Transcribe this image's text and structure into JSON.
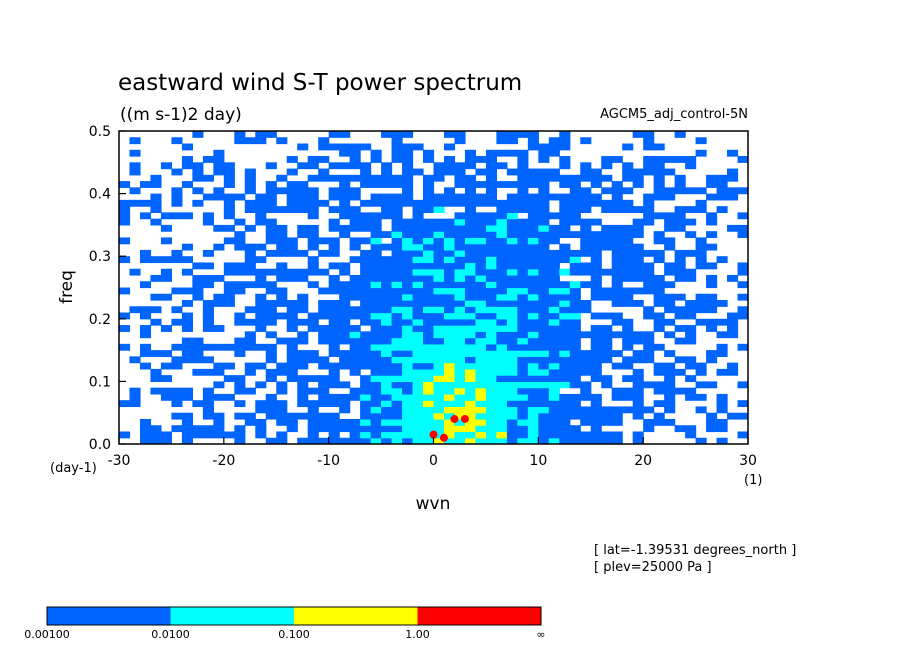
{
  "chart_data": {
    "type": "heatmap",
    "title": "eastward wind S-T power spectrum",
    "units": "((m s-1)2 day)",
    "subtitle_right": "AGCM5_adj_control-5N",
    "xlabel": "wvn",
    "ylabel": "freq",
    "x_units": "(1)",
    "y_units": "(day-1)",
    "xlim": [
      -30,
      30
    ],
    "ylim": [
      0,
      0.5
    ],
    "xticks": [
      -30,
      -20,
      -10,
      0,
      10,
      20,
      30
    ],
    "xtick_labels": [
      "-30",
      "-20",
      "-10",
      "0",
      "10",
      "20",
      "30"
    ],
    "yticks": [
      0,
      0.1,
      0.2,
      0.3,
      0.4,
      0.5
    ],
    "ytick_labels": [
      "0.0",
      "0.1",
      "0.2",
      "0.3",
      "0.4",
      "0.5"
    ],
    "info": [
      "[ lat=-1.39531 degrees_north ]",
      "[ plev=25000 Pa ]"
    ],
    "colorbar": {
      "levels": [
        "0.00100",
        "0.0100",
        "0.100",
        "1.00",
        "∞"
      ],
      "colors": [
        "#0064ff",
        "#00ffff",
        "#ffff00",
        "#ff0000"
      ]
    }
  }
}
